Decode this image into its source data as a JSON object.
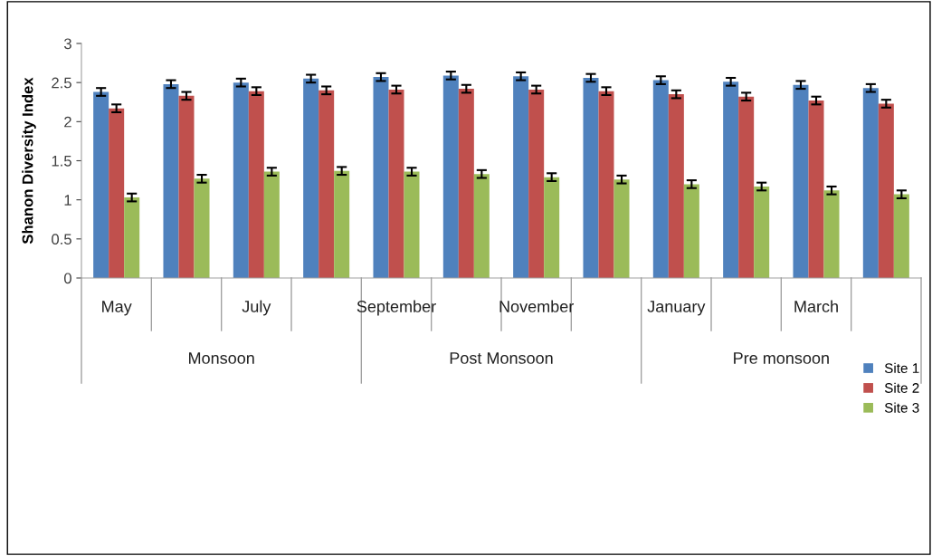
{
  "chart_data": {
    "type": "bar",
    "ylabel": "Shanon Diversity Index",
    "categories": [
      "May",
      null,
      "July",
      null,
      "September",
      null,
      "November",
      null,
      "January",
      null,
      "March",
      null
    ],
    "series": [
      {
        "name": "Site 1",
        "color": "#4f81bd",
        "values": [
          2.38,
          2.48,
          2.5,
          2.55,
          2.57,
          2.59,
          2.58,
          2.56,
          2.53,
          2.51,
          2.47,
          2.43
        ],
        "errors": [
          0.05,
          0.05,
          0.05,
          0.05,
          0.05,
          0.05,
          0.05,
          0.05,
          0.05,
          0.05,
          0.05,
          0.05
        ]
      },
      {
        "name": "Site 2",
        "color": "#c0504d",
        "values": [
          2.17,
          2.33,
          2.39,
          2.4,
          2.41,
          2.42,
          2.41,
          2.39,
          2.35,
          2.32,
          2.27,
          2.23
        ],
        "errors": [
          0.05,
          0.05,
          0.05,
          0.05,
          0.05,
          0.05,
          0.05,
          0.05,
          0.05,
          0.05,
          0.05,
          0.05
        ]
      },
      {
        "name": "Site 3",
        "color": "#9bbb59",
        "values": [
          1.03,
          1.27,
          1.36,
          1.37,
          1.36,
          1.33,
          1.29,
          1.26,
          1.2,
          1.17,
          1.12,
          1.07
        ],
        "errors": [
          0.05,
          0.05,
          0.05,
          0.05,
          0.05,
          0.05,
          0.05,
          0.05,
          0.05,
          0.05,
          0.05,
          0.05
        ]
      }
    ],
    "ylim": [
      0,
      3
    ],
    "yticks": [
      0,
      0.5,
      1,
      1.5,
      2,
      2.5,
      3
    ],
    "annotations": [
      "Monsoon",
      "Post Monsoon",
      "Pre monsoon"
    ],
    "grid": false,
    "legend": "right"
  }
}
